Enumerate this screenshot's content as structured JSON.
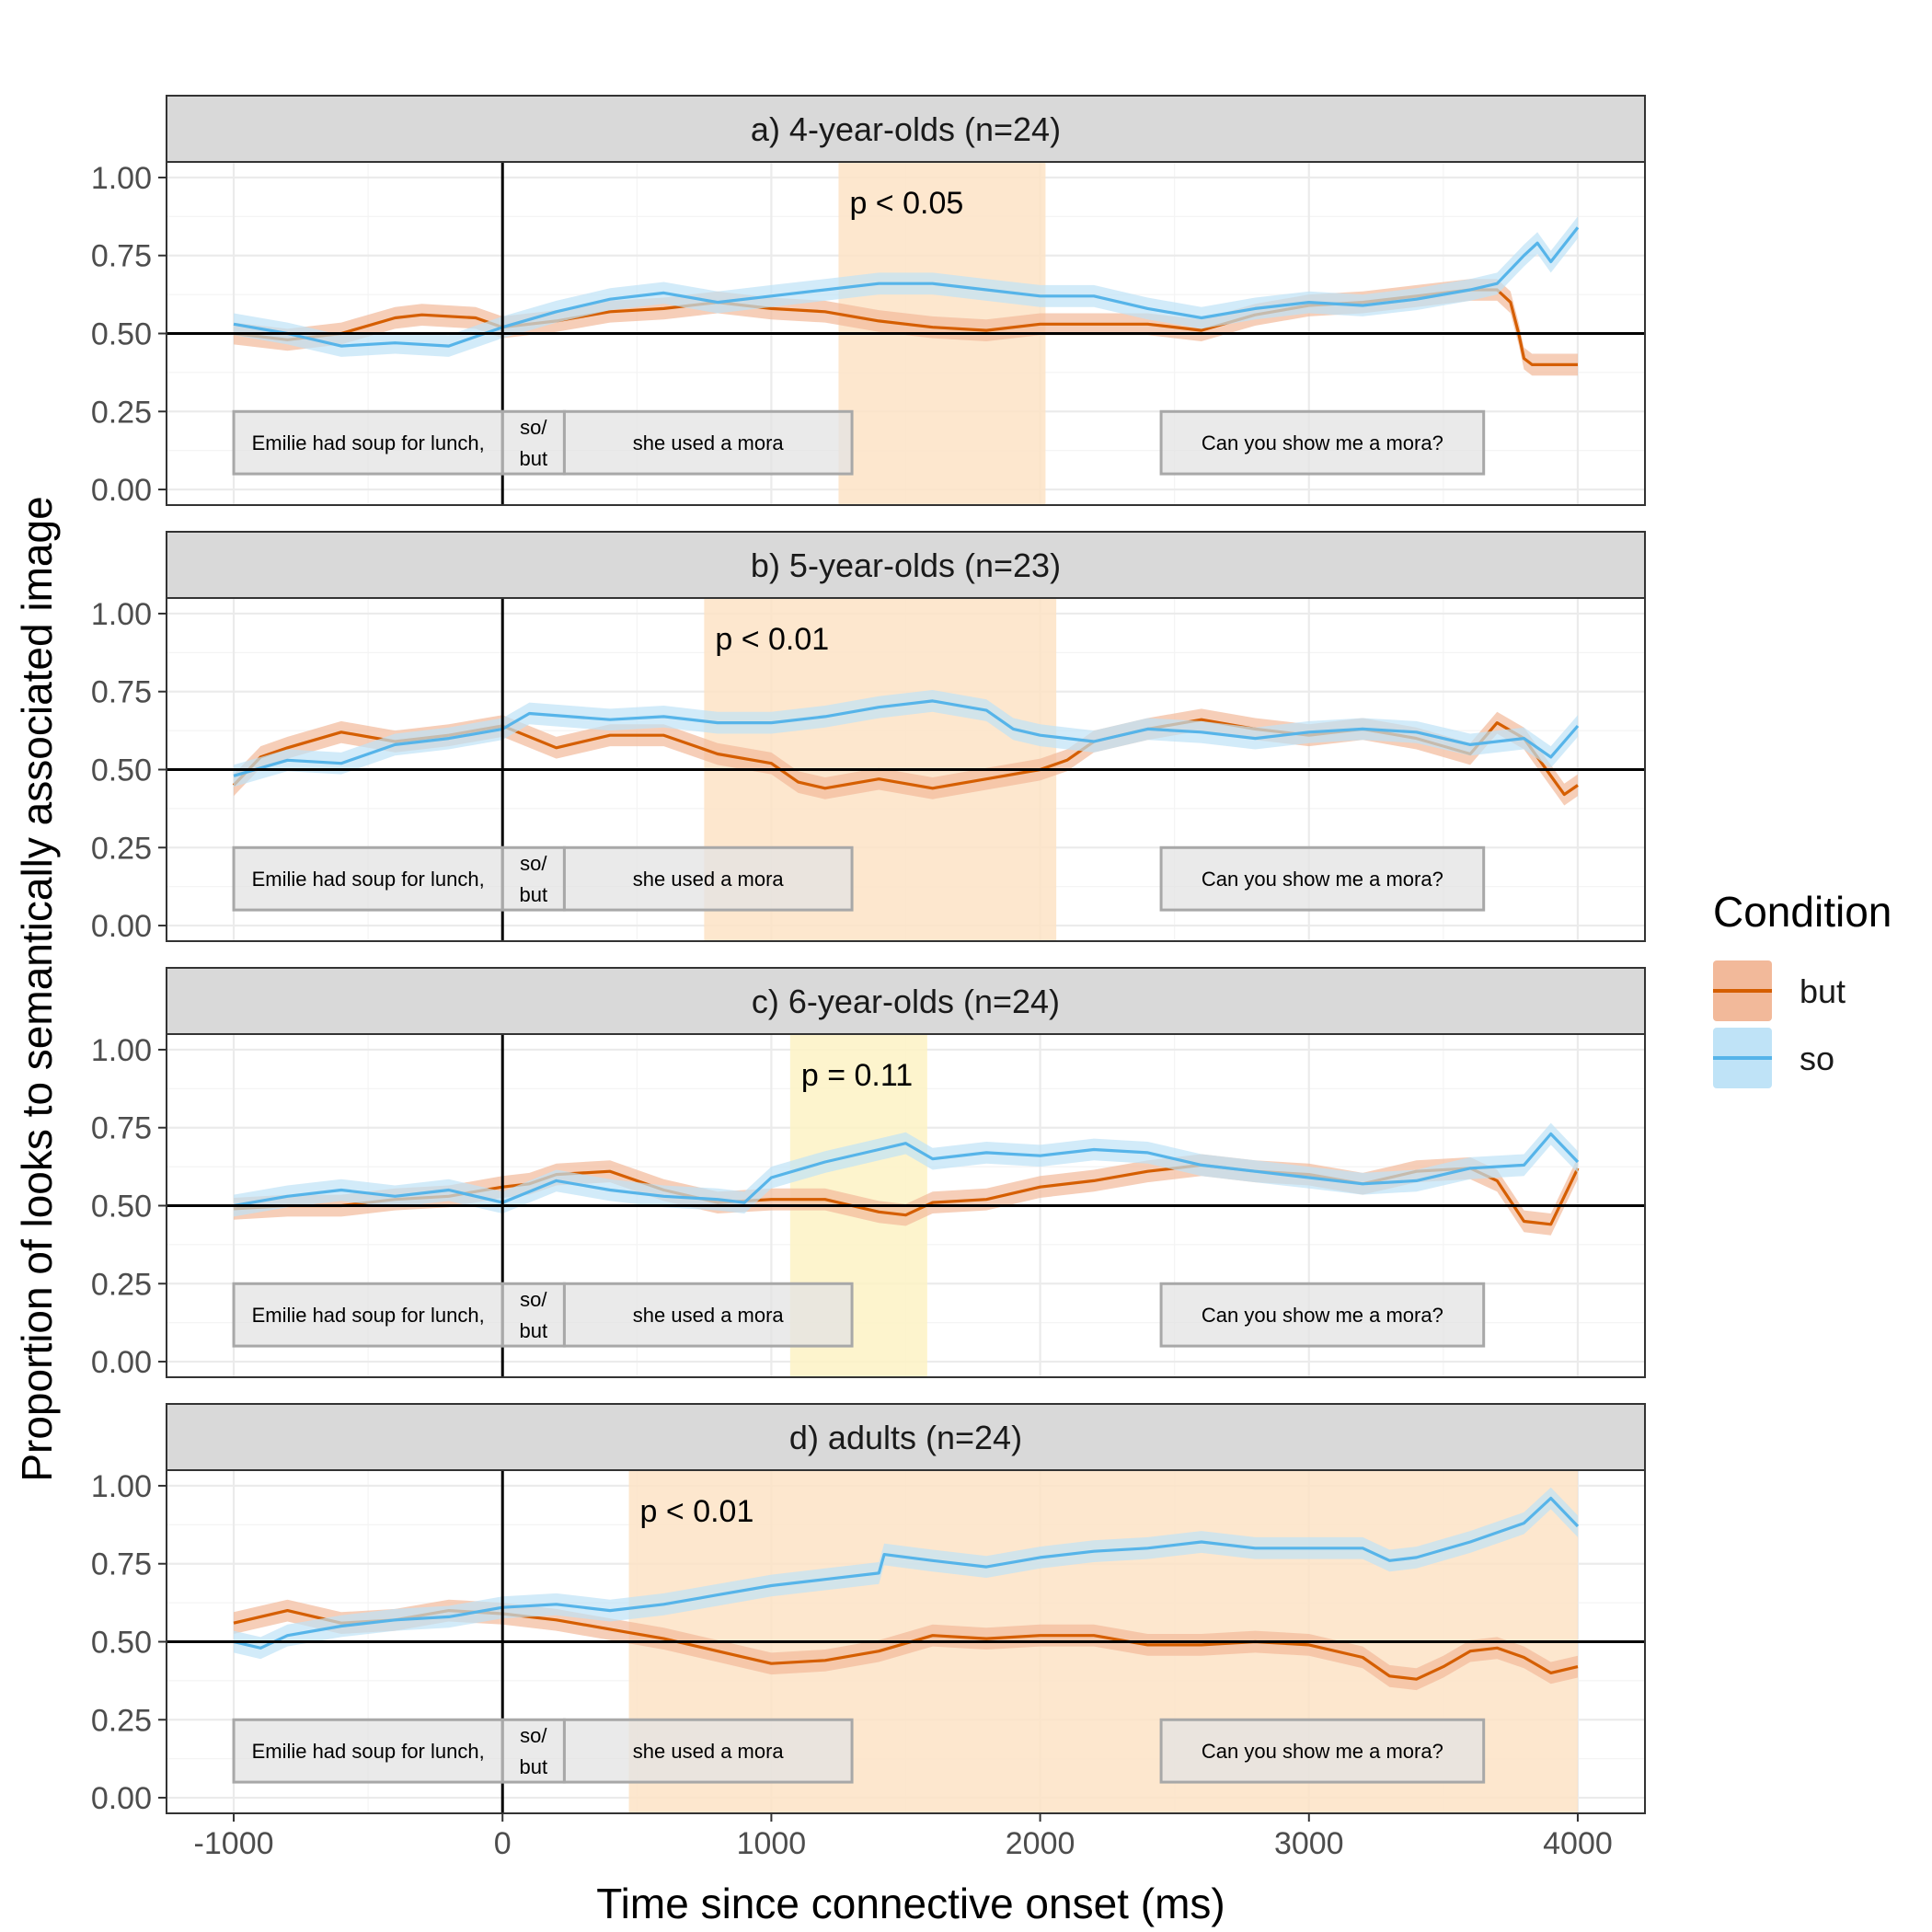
{
  "colors": {
    "but_line": "#d55e00",
    "but_band": "#f2b99a",
    "so_line": "#56b4e9",
    "so_band": "#bfe3f7",
    "sig_band": "#fde3c6",
    "nonsig_band": "#fdf2c4"
  },
  "chart_data": {
    "type": "line",
    "xlabel": "Time since connective onset (ms)",
    "ylabel": "Proportion of looks to semantically associated image",
    "xlim": [
      -1250,
      4250
    ],
    "ylim": [
      -0.05,
      1.05
    ],
    "x_ticks": [
      -1000,
      0,
      1000,
      2000,
      3000,
      4000
    ],
    "x_tick_labels": [
      "-1000",
      "0",
      "1000",
      "2000",
      "3000",
      "4000"
    ],
    "y_ticks": [
      0,
      0.25,
      0.5,
      0.75,
      1
    ],
    "y_tick_labels": [
      "0.00",
      "0.25",
      "0.50",
      "0.75",
      "1.00"
    ],
    "reference_lines": {
      "x": 0,
      "y": 0.5
    },
    "grid": true,
    "legend": {
      "title": "Condition",
      "position": "right",
      "entries": [
        "but",
        "so"
      ]
    },
    "segments": [
      {
        "x0": -1000,
        "x1": 0,
        "lines": [
          "Emilie had soup for lunch,"
        ]
      },
      {
        "x0": 0,
        "x1": 230,
        "lines": [
          "so/",
          "but"
        ]
      },
      {
        "x0": 230,
        "x1": 1300,
        "lines": [
          "she used a mora"
        ]
      },
      {
        "x0": 2450,
        "x1": 3650,
        "lines": [
          "Can you show me a mora?"
        ]
      }
    ],
    "panels": [
      {
        "title": "a) 4-year-olds (n=24)",
        "window": {
          "x0": 1250,
          "x1": 2020,
          "label": "p < 0.05",
          "significant": true
        },
        "series": [
          {
            "name": "but",
            "band": 0.035,
            "x": [
              -1000,
              -800,
              -600,
              -400,
              -300,
              -100,
              0,
              200,
              400,
              600,
              800,
              1000,
              1200,
              1400,
              1600,
              1800,
              2000,
              2200,
              2400,
              2600,
              2800,
              3000,
              3200,
              3400,
              3600,
              3700,
              3750,
              3780,
              3800,
              3830,
              4000
            ],
            "y": [
              0.5,
              0.48,
              0.5,
              0.55,
              0.56,
              0.55,
              0.52,
              0.54,
              0.57,
              0.58,
              0.6,
              0.58,
              0.57,
              0.54,
              0.52,
              0.51,
              0.53,
              0.53,
              0.53,
              0.51,
              0.56,
              0.59,
              0.6,
              0.62,
              0.64,
              0.64,
              0.6,
              0.5,
              0.42,
              0.4,
              0.4
            ]
          },
          {
            "name": "so",
            "band": 0.035,
            "x": [
              -1000,
              -800,
              -600,
              -400,
              -200,
              0,
              200,
              400,
              600,
              800,
              1000,
              1200,
              1400,
              1600,
              1800,
              2000,
              2200,
              2400,
              2600,
              2800,
              3000,
              3200,
              3400,
              3600,
              3700,
              3800,
              3850,
              3900,
              4000
            ],
            "y": [
              0.53,
              0.5,
              0.46,
              0.47,
              0.46,
              0.52,
              0.57,
              0.61,
              0.63,
              0.6,
              0.62,
              0.64,
              0.66,
              0.66,
              0.64,
              0.62,
              0.62,
              0.58,
              0.55,
              0.58,
              0.6,
              0.59,
              0.61,
              0.64,
              0.66,
              0.75,
              0.79,
              0.73,
              0.84
            ]
          }
        ]
      },
      {
        "title": "b) 5-year-olds (n=23)",
        "window": {
          "x0": 750,
          "x1": 2060,
          "label": "p < 0.01",
          "significant": true
        },
        "series": [
          {
            "name": "but",
            "band": 0.035,
            "x": [
              -1000,
              -900,
              -800,
              -600,
              -400,
              -200,
              0,
              200,
              400,
              600,
              800,
              1000,
              1100,
              1200,
              1400,
              1600,
              1800,
              2000,
              2100,
              2200,
              2400,
              2600,
              2800,
              3000,
              3200,
              3400,
              3600,
              3700,
              3800,
              3900,
              3950,
              4000
            ],
            "y": [
              0.45,
              0.54,
              0.57,
              0.62,
              0.59,
              0.61,
              0.64,
              0.57,
              0.61,
              0.61,
              0.55,
              0.52,
              0.46,
              0.44,
              0.47,
              0.44,
              0.47,
              0.5,
              0.53,
              0.59,
              0.63,
              0.66,
              0.63,
              0.61,
              0.63,
              0.6,
              0.55,
              0.65,
              0.6,
              0.48,
              0.42,
              0.45
            ]
          },
          {
            "name": "so",
            "band": 0.035,
            "x": [
              -1000,
              -800,
              -600,
              -400,
              -200,
              0,
              100,
              400,
              600,
              800,
              1000,
              1200,
              1400,
              1600,
              1800,
              1900,
              2000,
              2200,
              2400,
              2600,
              2800,
              3000,
              3200,
              3400,
              3600,
              3800,
              3900,
              4000
            ],
            "y": [
              0.48,
              0.53,
              0.52,
              0.58,
              0.6,
              0.63,
              0.68,
              0.66,
              0.67,
              0.65,
              0.65,
              0.67,
              0.7,
              0.72,
              0.69,
              0.63,
              0.61,
              0.59,
              0.63,
              0.62,
              0.6,
              0.62,
              0.63,
              0.62,
              0.58,
              0.6,
              0.54,
              0.64
            ]
          }
        ]
      },
      {
        "title": "c) 6-year-olds (n=24)",
        "window": {
          "x0": 1070,
          "x1": 1580,
          "label": "p = 0.11",
          "significant": false
        },
        "series": [
          {
            "name": "but",
            "band": 0.035,
            "x": [
              -1000,
              -800,
              -600,
              -400,
              -200,
              0,
              100,
              200,
              400,
              600,
              800,
              1000,
              1200,
              1400,
              1500,
              1600,
              1800,
              2000,
              2200,
              2400,
              2600,
              2800,
              3000,
              3200,
              3400,
              3600,
              3700,
              3800,
              3900,
              4000
            ],
            "y": [
              0.49,
              0.5,
              0.5,
              0.52,
              0.53,
              0.56,
              0.57,
              0.6,
              0.61,
              0.55,
              0.51,
              0.52,
              0.52,
              0.48,
              0.47,
              0.51,
              0.52,
              0.56,
              0.58,
              0.61,
              0.63,
              0.61,
              0.6,
              0.57,
              0.61,
              0.62,
              0.58,
              0.45,
              0.44,
              0.62
            ]
          },
          {
            "name": "so",
            "band": 0.035,
            "x": [
              -1000,
              -800,
              -600,
              -400,
              -200,
              0,
              200,
              400,
              600,
              800,
              900,
              1000,
              1200,
              1400,
              1500,
              1600,
              1800,
              2000,
              2200,
              2400,
              2600,
              2800,
              3000,
              3200,
              3400,
              3600,
              3800,
              3900,
              4000
            ],
            "y": [
              0.5,
              0.53,
              0.55,
              0.53,
              0.55,
              0.51,
              0.58,
              0.55,
              0.53,
              0.52,
              0.51,
              0.59,
              0.64,
              0.68,
              0.7,
              0.65,
              0.67,
              0.66,
              0.68,
              0.67,
              0.63,
              0.61,
              0.59,
              0.57,
              0.58,
              0.62,
              0.63,
              0.73,
              0.64
            ]
          }
        ]
      },
      {
        "title": "d) adults (n=24)",
        "window": {
          "x0": 470,
          "x1": 4000,
          "label": "p < 0.01",
          "significant": true
        },
        "series": [
          {
            "name": "but",
            "band": 0.035,
            "x": [
              -1000,
              -800,
              -600,
              -400,
              -200,
              0,
              200,
              400,
              600,
              800,
              1000,
              1200,
              1400,
              1600,
              1800,
              2000,
              2200,
              2400,
              2600,
              2800,
              3000,
              3200,
              3300,
              3400,
              3500,
              3600,
              3700,
              3800,
              3900,
              4000
            ],
            "y": [
              0.56,
              0.6,
              0.56,
              0.57,
              0.6,
              0.59,
              0.57,
              0.54,
              0.51,
              0.47,
              0.43,
              0.44,
              0.47,
              0.52,
              0.51,
              0.52,
              0.52,
              0.49,
              0.49,
              0.5,
              0.49,
              0.45,
              0.39,
              0.38,
              0.42,
              0.47,
              0.48,
              0.45,
              0.4,
              0.42
            ]
          },
          {
            "name": "so",
            "band": 0.035,
            "x": [
              -1000,
              -900,
              -800,
              -600,
              -400,
              -200,
              0,
              200,
              400,
              600,
              800,
              1000,
              1200,
              1400,
              1420,
              1600,
              1800,
              2000,
              2200,
              2400,
              2600,
              2800,
              3000,
              3200,
              3300,
              3400,
              3600,
              3800,
              3900,
              4000
            ],
            "y": [
              0.5,
              0.48,
              0.52,
              0.55,
              0.57,
              0.58,
              0.61,
              0.62,
              0.6,
              0.62,
              0.65,
              0.68,
              0.7,
              0.72,
              0.78,
              0.76,
              0.74,
              0.77,
              0.79,
              0.8,
              0.82,
              0.8,
              0.8,
              0.8,
              0.76,
              0.77,
              0.82,
              0.88,
              0.96,
              0.87
            ]
          }
        ]
      }
    ]
  }
}
